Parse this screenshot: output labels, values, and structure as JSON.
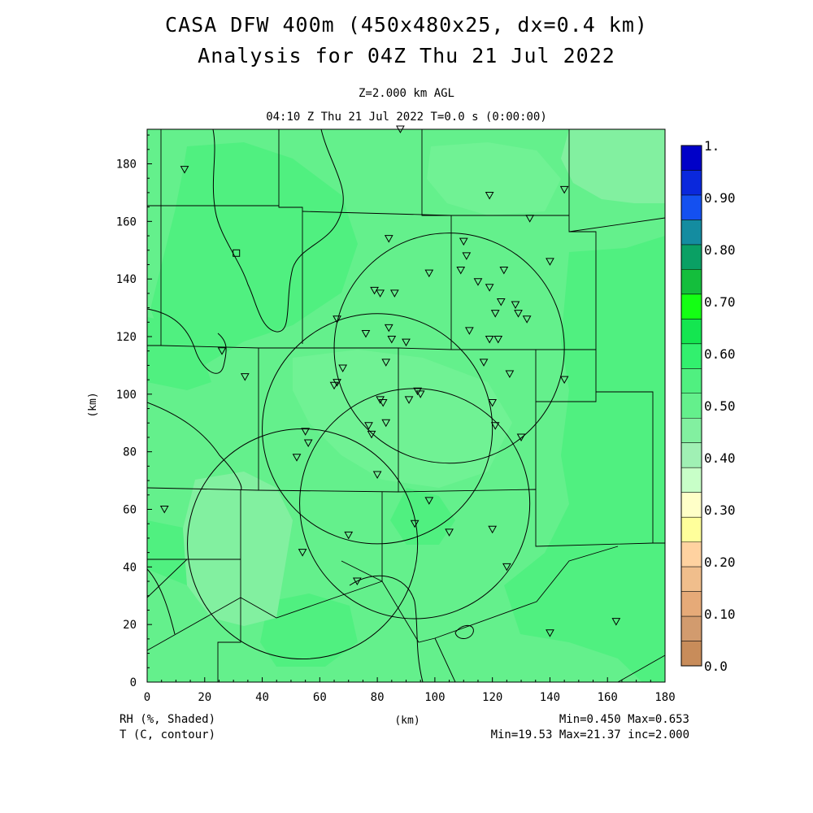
{
  "title": {
    "line1": "CASA DFW 400m (450x480x25, dx=0.4 km)",
    "line2": "Analysis for 04Z Thu 21 Jul 2022"
  },
  "subtitle": {
    "level": "Z=2.000 km AGL",
    "time": "04:10 Z Thu 21 Jul 2022   T=0.0 s (0:00:00)"
  },
  "axes": {
    "xlabel": "(km)",
    "ylabel": "(km)",
    "x_ticks": [
      "0",
      "20",
      "40",
      "60",
      "80",
      "100",
      "120",
      "140",
      "160",
      "180"
    ],
    "y_ticks": [
      "0",
      "20",
      "40",
      "60",
      "80",
      "100",
      "120",
      "140",
      "160",
      "180"
    ],
    "x_range": [
      0,
      180
    ],
    "y_range": [
      0,
      192
    ]
  },
  "footer": {
    "left1": "RH (%, Shaded)",
    "left2": "T (C, contour)",
    "right1": "Min=0.450 Max=0.653",
    "right2": "Min=19.53 Max=21.37 inc=2.000"
  },
  "colorbar": {
    "labels": [
      "1.",
      "0.90",
      "0.80",
      "0.70",
      "0.60",
      "0.50",
      "0.40",
      "0.30",
      "0.20",
      "0.10",
      "0.0"
    ],
    "colors": [
      "#0000c8",
      "#0a28dc",
      "#1450f0",
      "#148ca0",
      "#0aa064",
      "#14be3c",
      "#14ff14",
      "#14e650",
      "#32f06e",
      "#50f080",
      "#64f08c",
      "#82f0a0",
      "#a0f0b4",
      "#c8ffc8",
      "#ffffc8",
      "#ffff9b",
      "#ffd2a0",
      "#f0be8c",
      "#e6aa78",
      "#d29b6e",
      "#c88c5a"
    ]
  },
  "chart_data": {
    "type": "heatmap",
    "field": "RH",
    "field_min": 0.45,
    "field_max": 0.653,
    "contour_field": "T",
    "contour_min": 19.53,
    "contour_max": 21.37,
    "contour_inc": 2.0,
    "radar_rings": [
      {
        "center": [
          105,
          116
        ],
        "radius": 40
      },
      {
        "center": [
          80,
          88
        ],
        "radius": 40
      },
      {
        "center": [
          93,
          62
        ],
        "radius": 40
      },
      {
        "center": [
          54,
          48
        ],
        "radius": 40
      }
    ],
    "stations": [
      [
        13,
        178
      ],
      [
        88,
        192
      ],
      [
        119,
        169
      ],
      [
        145,
        171
      ],
      [
        133,
        161
      ],
      [
        84,
        154
      ],
      [
        110,
        153
      ],
      [
        111,
        148
      ],
      [
        140,
        146
      ],
      [
        98,
        142
      ],
      [
        109,
        143
      ],
      [
        115,
        139
      ],
      [
        124,
        143
      ],
      [
        119,
        137
      ],
      [
        79,
        136
      ],
      [
        81,
        135
      ],
      [
        86,
        135
      ],
      [
        123,
        132
      ],
      [
        128,
        131
      ],
      [
        129,
        128
      ],
      [
        132,
        126
      ],
      [
        121,
        128
      ],
      [
        66,
        126
      ],
      [
        84,
        123
      ],
      [
        76,
        121
      ],
      [
        85,
        119
      ],
      [
        90,
        118
      ],
      [
        112,
        122
      ],
      [
        119,
        119
      ],
      [
        122,
        119
      ],
      [
        26,
        115
      ],
      [
        34,
        106
      ],
      [
        68,
        109
      ],
      [
        83,
        111
      ],
      [
        117,
        111
      ],
      [
        126,
        107
      ],
      [
        145,
        105
      ],
      [
        66,
        104
      ],
      [
        65,
        103
      ],
      [
        94,
        101
      ],
      [
        95,
        100
      ],
      [
        81,
        98
      ],
      [
        82,
        97
      ],
      [
        91,
        98
      ],
      [
        120,
        97
      ],
      [
        121,
        89
      ],
      [
        130,
        85
      ],
      [
        83,
        90
      ],
      [
        77,
        89
      ],
      [
        78,
        86
      ],
      [
        55,
        87
      ],
      [
        56,
        83
      ],
      [
        52,
        78
      ],
      [
        80,
        72
      ],
      [
        98,
        63
      ],
      [
        6,
        60
      ],
      [
        93,
        55
      ],
      [
        105,
        52
      ],
      [
        120,
        53
      ],
      [
        70,
        51
      ],
      [
        54,
        45
      ],
      [
        125,
        40
      ],
      [
        73,
        35
      ],
      [
        140,
        17
      ],
      [
        163,
        21
      ]
    ],
    "square_station": [
      31,
      149
    ]
  }
}
